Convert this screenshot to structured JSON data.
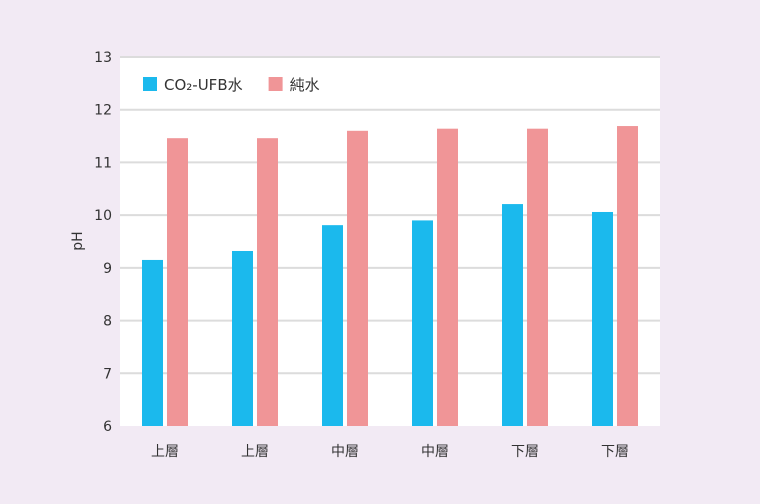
{
  "chart_data": {
    "type": "bar",
    "title": "",
    "xlabel": "",
    "ylabel": "pH",
    "ylim": [
      6,
      13
    ],
    "yticks": [
      6,
      7,
      8,
      9,
      10,
      11,
      12,
      13
    ],
    "grid": true,
    "legend_placement": "top-left",
    "categories": [
      "上層",
      "上層",
      "中層",
      "中層",
      "下層",
      "下層"
    ],
    "series": [
      {
        "name": "CO₂-UFB水",
        "color": "#1bb9ed",
        "values": [
          9.15,
          9.32,
          9.81,
          9.9,
          10.21,
          10.06
        ]
      },
      {
        "name": "純水",
        "color": "#f09597",
        "values": [
          11.46,
          11.46,
          11.6,
          11.64,
          11.64,
          11.69
        ]
      }
    ]
  }
}
